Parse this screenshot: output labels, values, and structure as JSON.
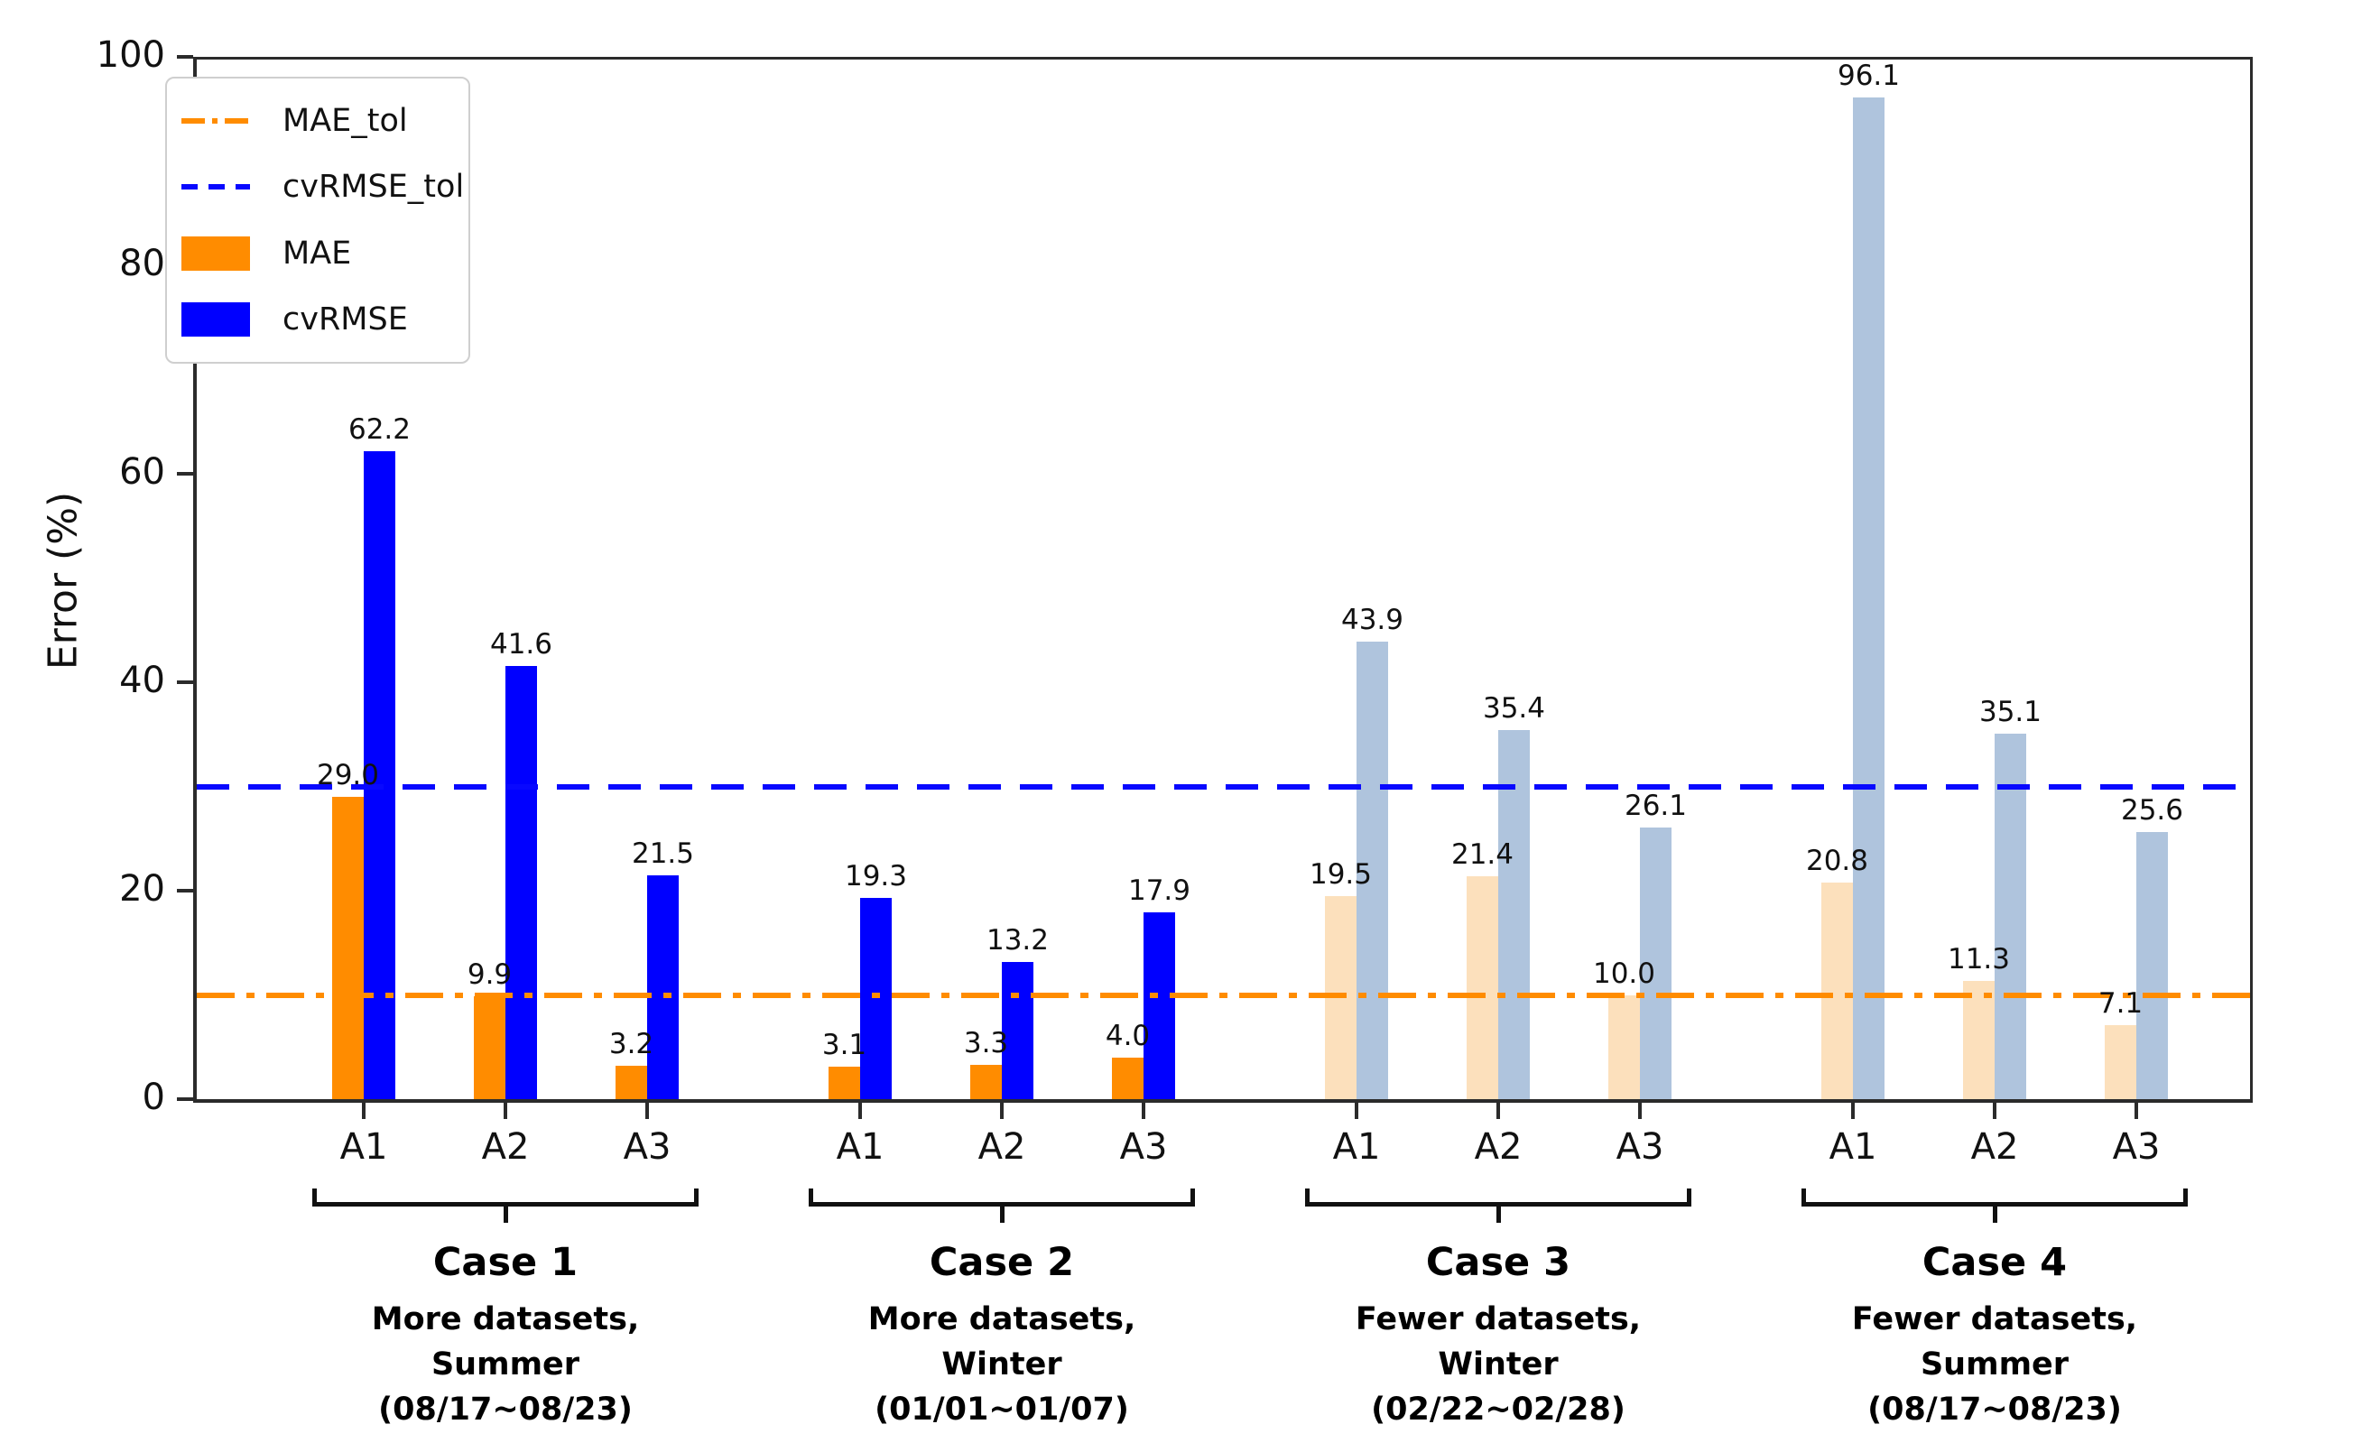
{
  "chart_data": {
    "type": "bar",
    "title": "",
    "xlabel": "",
    "ylabel": "Error (%)",
    "ylim": [
      0,
      100
    ],
    "yticks": [
      0,
      20,
      40,
      60,
      80,
      100
    ],
    "grid": false,
    "legend_position": "upper-left",
    "legend": [
      {
        "label": "MAE_tol",
        "swatch": "dashdot-line",
        "color": "#FF8C00"
      },
      {
        "label": "cvRMSE_tol",
        "swatch": "dashed-line",
        "color": "#0808FF"
      },
      {
        "label": "MAE",
        "swatch": "rect",
        "color": "#FF8C00"
      },
      {
        "label": "cvRMSE",
        "swatch": "rect",
        "color": "#0000FF"
      }
    ],
    "series": [
      {
        "name": "MAE",
        "color": "#FF8C00",
        "muted_color": "#FCE0BC"
      },
      {
        "name": "cvRMSE",
        "color": "#0000FF",
        "muted_color": "#AFC4DD"
      }
    ],
    "tolerance_lines": [
      {
        "name": "MAE_tol",
        "value": 10,
        "style": "dashdot",
        "color": "#FF8C00"
      },
      {
        "name": "cvRMSE_tol",
        "value": 30,
        "style": "dashed",
        "color": "#0808FF"
      }
    ],
    "groups": [
      {
        "case": "Case 1",
        "desc": [
          "More datasets,",
          "Summer",
          "(08/17~08/23)"
        ],
        "muted": false,
        "bars": [
          {
            "x": "A1",
            "MAE": 29.0,
            "cvRMSE": 62.2
          },
          {
            "x": "A2",
            "MAE": 9.9,
            "cvRMSE": 41.6
          },
          {
            "x": "A3",
            "MAE": 3.2,
            "cvRMSE": 21.5
          }
        ]
      },
      {
        "case": "Case 2",
        "desc": [
          "More datasets,",
          "Winter",
          "(01/01~01/07)"
        ],
        "muted": false,
        "bars": [
          {
            "x": "A1",
            "MAE": 3.1,
            "cvRMSE": 19.3
          },
          {
            "x": "A2",
            "MAE": 3.3,
            "cvRMSE": 13.2
          },
          {
            "x": "A3",
            "MAE": 4.0,
            "cvRMSE": 17.9
          }
        ]
      },
      {
        "case": "Case 3",
        "desc": [
          "Fewer datasets,",
          "Winter",
          "(02/22~02/28)"
        ],
        "muted": true,
        "bars": [
          {
            "x": "A1",
            "MAE": 19.5,
            "cvRMSE": 43.9
          },
          {
            "x": "A2",
            "MAE": 21.4,
            "cvRMSE": 35.4
          },
          {
            "x": "A3",
            "MAE": 10.0,
            "cvRMSE": 26.1
          }
        ]
      },
      {
        "case": "Case 4",
        "desc": [
          "Fewer datasets,",
          "Summer",
          "(08/17~08/23)"
        ],
        "muted": true,
        "bars": [
          {
            "x": "A1",
            "MAE": 20.8,
            "cvRMSE": 96.1
          },
          {
            "x": "A2",
            "MAE": 11.3,
            "cvRMSE": 35.1
          },
          {
            "x": "A3",
            "MAE": 7.1,
            "cvRMSE": 25.6
          }
        ]
      }
    ],
    "axis_color": "#2b2b2b"
  }
}
